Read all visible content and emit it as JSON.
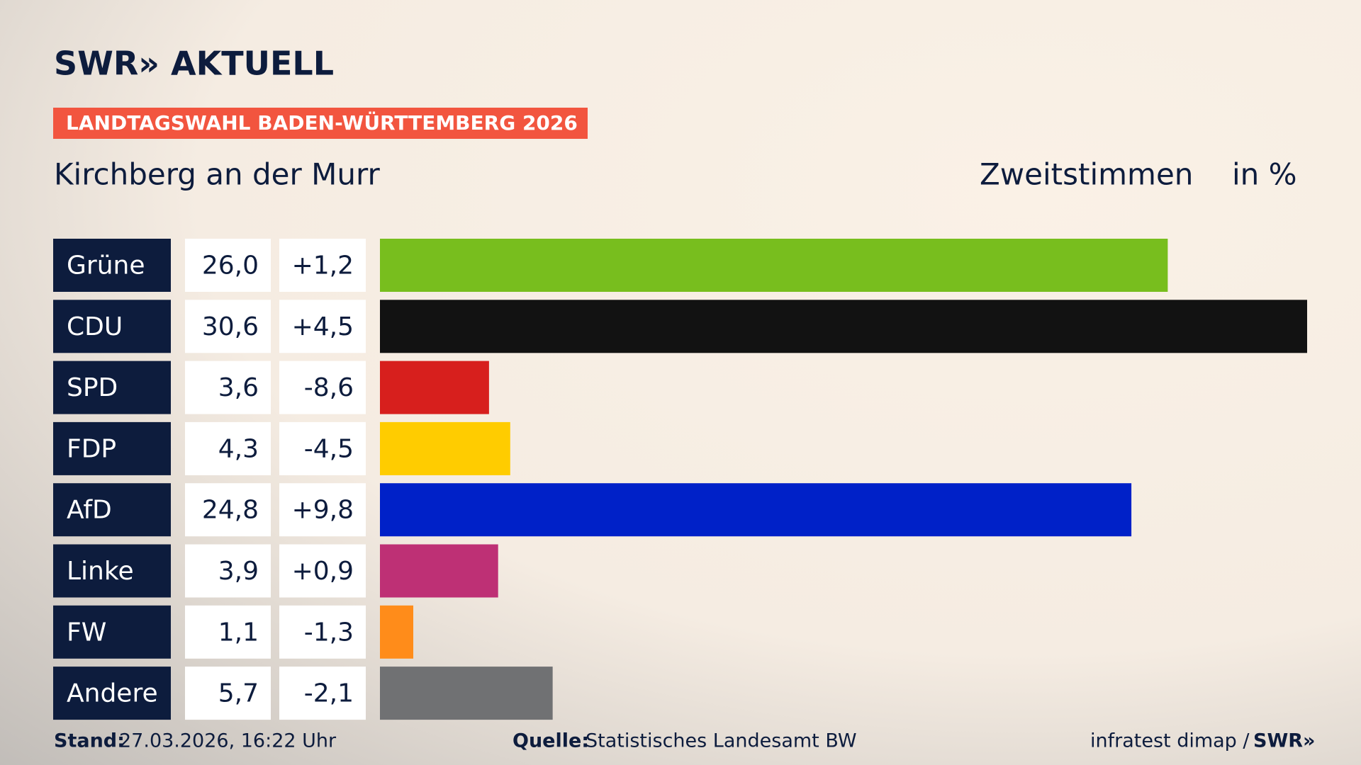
{
  "chart_data": {
    "type": "bar",
    "brand": "SWR» AKTUELL",
    "banner": "LANDTAGSWAHL BADEN-WÜRTTEMBERG 2026",
    "title": "Kirchberg an der Murr",
    "measure": "Zweitstimmen",
    "unit": "in %",
    "categories": [
      "Grüne",
      "CDU",
      "SPD",
      "FDP",
      "AfD",
      "Linke",
      "FW",
      "Andere"
    ],
    "values": [
      26.0,
      30.6,
      3.6,
      4.3,
      24.8,
      3.9,
      1.1,
      5.7
    ],
    "value_labels": [
      "26,0",
      "30,6",
      "3,6",
      "4,3",
      "24,8",
      "3,9",
      "1,1",
      "5,7"
    ],
    "changes": [
      1.2,
      4.5,
      -8.6,
      -4.5,
      9.8,
      0.9,
      -1.3,
      -2.1
    ],
    "change_labels": [
      "+1,2",
      "+4,5",
      "-8,6",
      "-4,5",
      "+9,8",
      "+0,9",
      "-1,3",
      "-2,1"
    ],
    "colors": [
      "#78be1e",
      "#121212",
      "#d71f1d",
      "#ffcc00",
      "#0021c8",
      "#be3075",
      "#ff8c1a",
      "#707173"
    ],
    "footer": {
      "stand_label": "Stand:",
      "stand": "27.03.2026, 16:22 Uhr",
      "source_label": "Quelle:",
      "source": "Statistisches Landesamt BW",
      "credit": "infratest dimap /",
      "credit_brand": "SWR»"
    }
  }
}
